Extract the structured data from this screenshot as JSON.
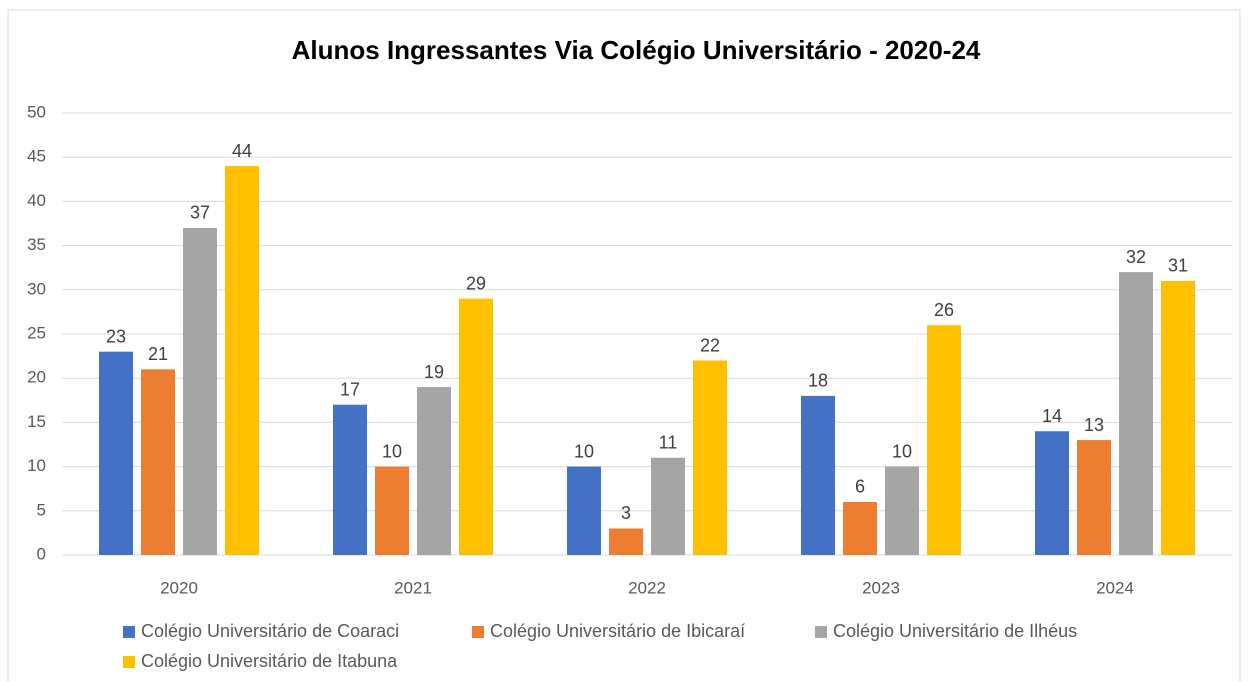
{
  "chart_data": {
    "type": "bar",
    "title": "Alunos Ingressantes Via Colégio Universitário - 2020-24",
    "categories": [
      "2020",
      "2021",
      "2022",
      "2023",
      "2024"
    ],
    "series": [
      {
        "name": "Colégio Universitário de Coaraci",
        "color": "#4472c4",
        "values": [
          23,
          17,
          10,
          18,
          14
        ]
      },
      {
        "name": "Colégio Universitário de Ibicaraí",
        "color": "#ed7d31",
        "values": [
          21,
          10,
          3,
          6,
          13
        ]
      },
      {
        "name": "Colégio Universitário de Ilhéus",
        "color": "#a5a5a5",
        "values": [
          37,
          19,
          11,
          10,
          32
        ]
      },
      {
        "name": "Colégio Universitário de Itabuna",
        "color": "#ffc000",
        "values": [
          44,
          29,
          22,
          26,
          31
        ]
      }
    ],
    "ylim": [
      0,
      50
    ],
    "yticks": [
      0,
      5,
      10,
      15,
      20,
      25,
      30,
      35,
      40,
      45,
      50
    ],
    "grid": true,
    "legend": "bottom"
  }
}
